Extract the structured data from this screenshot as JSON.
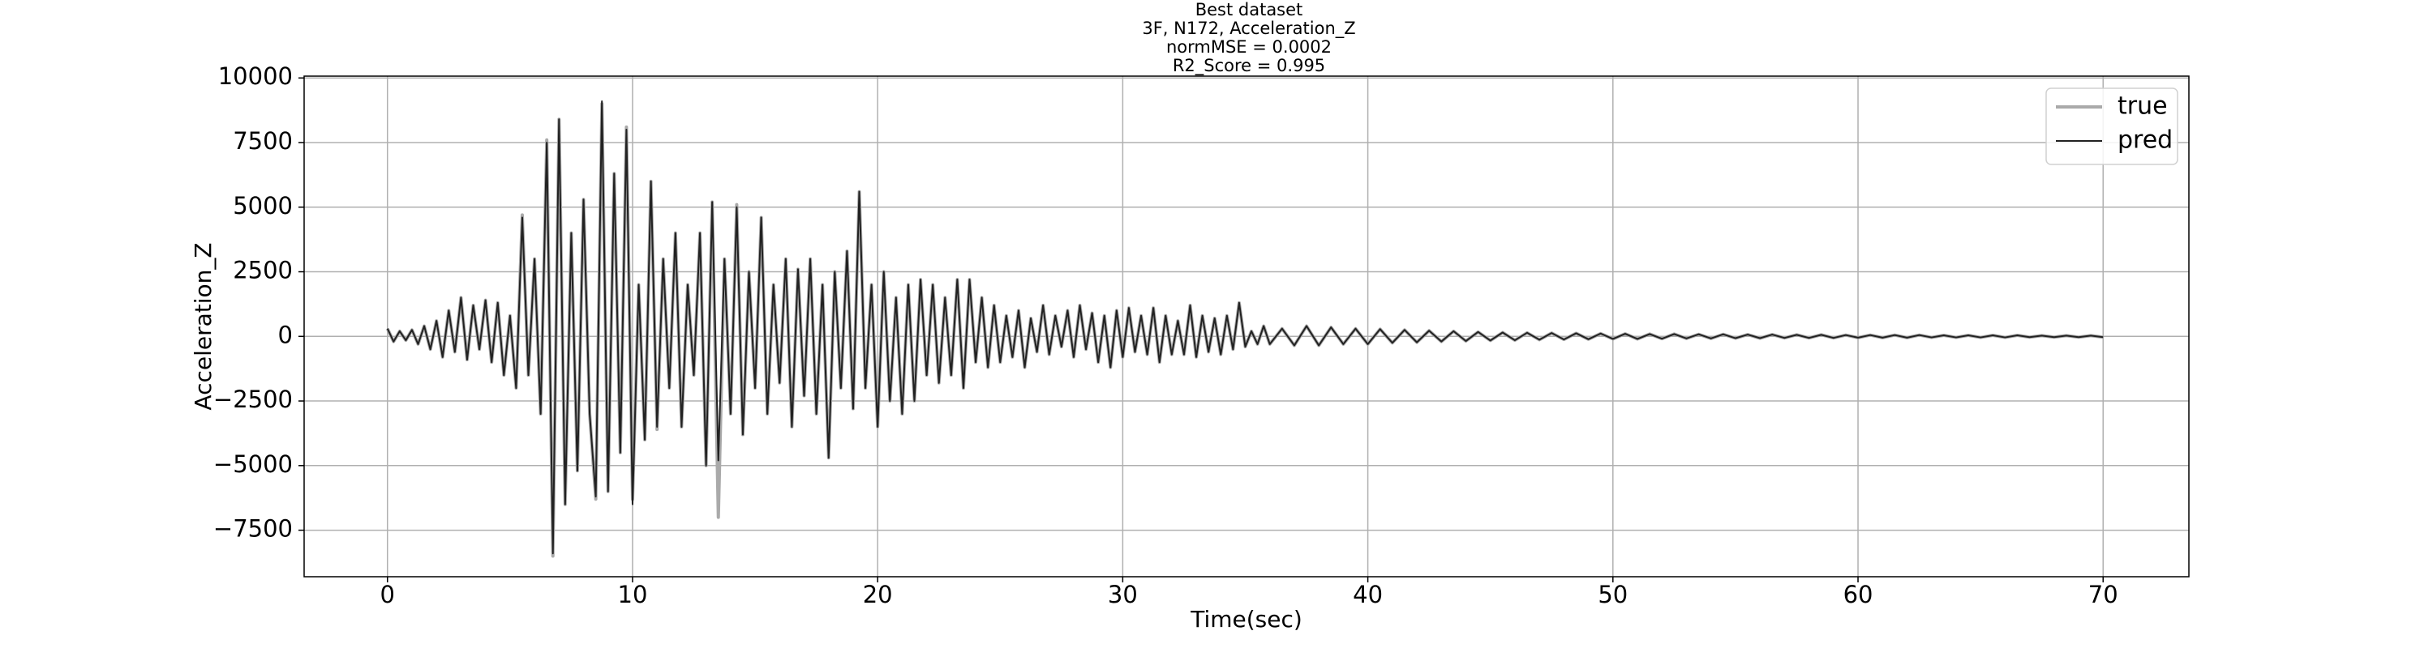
{
  "chart_data": {
    "type": "line",
    "title": "Best dataset",
    "subtitle": [
      "3F, N172, Acceleration_Z",
      "normMSE = 0.0002",
      "R2_Score = 0.995"
    ],
    "x_label": "Time(sec)",
    "y_label": "Acceleration_Z",
    "xlim": [
      -3.4,
      73.5
    ],
    "ylim": [
      -9300,
      10070
    ],
    "xticks": [
      0,
      10,
      20,
      30,
      40,
      50,
      60,
      70
    ],
    "yticks": [
      {
        "value": -7500,
        "label": "−7500"
      },
      {
        "value": -5000,
        "label": "−5000"
      },
      {
        "value": -2500,
        "label": "−2500"
      },
      0,
      2500,
      5000,
      7500,
      10000
    ],
    "grid": true,
    "legend": "upper right",
    "x": [
      0,
      0.25,
      0.5,
      0.75,
      1,
      1.25,
      1.5,
      1.75,
      2,
      2.25,
      2.5,
      2.75,
      3,
      3.25,
      3.5,
      3.75,
      4,
      4.25,
      4.5,
      4.75,
      5,
      5.25,
      5.5,
      5.75,
      6,
      6.25,
      6.5,
      6.75,
      7,
      7.25,
      7.5,
      7.75,
      8,
      8.25,
      8.5,
      8.75,
      9,
      9.25,
      9.5,
      9.75,
      10,
      10.25,
      10.5,
      10.75,
      11,
      11.25,
      11.5,
      11.75,
      12,
      12.25,
      12.5,
      12.75,
      13,
      13.25,
      13.5,
      13.75,
      14,
      14.25,
      14.5,
      14.75,
      15,
      15.25,
      15.5,
      15.75,
      16,
      16.25,
      16.5,
      16.75,
      17,
      17.25,
      17.5,
      17.75,
      18,
      18.25,
      18.5,
      18.75,
      19,
      19.25,
      19.5,
      19.75,
      20,
      20.25,
      20.5,
      20.75,
      21,
      21.25,
      21.5,
      21.75,
      22,
      22.25,
      22.5,
      22.75,
      23,
      23.25,
      23.5,
      23.75,
      24,
      24.25,
      24.5,
      24.75,
      25,
      25.25,
      25.5,
      25.75,
      26,
      26.25,
      26.5,
      26.75,
      27,
      27.25,
      27.5,
      27.75,
      28,
      28.25,
      28.5,
      28.75,
      29,
      29.25,
      29.5,
      29.75,
      30,
      30.25,
      30.5,
      30.75,
      31,
      31.25,
      31.5,
      31.75,
      32,
      32.25,
      32.5,
      32.75,
      33,
      33.25,
      33.5,
      33.75,
      34,
      34.25,
      34.5,
      34.75,
      35,
      35.25,
      35.5,
      35.75,
      36,
      36.5,
      37,
      37.5,
      38,
      38.5,
      39,
      39.5,
      40,
      40.5,
      41,
      41.5,
      42,
      42.5,
      43,
      43.5,
      44,
      44.5,
      45,
      45.5,
      46,
      46.5,
      47,
      47.5,
      48,
      48.5,
      49,
      49.5,
      50,
      50.5,
      51,
      51.5,
      52,
      52.5,
      53,
      53.5,
      54,
      54.5,
      55,
      55.5,
      56,
      56.5,
      57,
      57.5,
      58,
      58.5,
      59,
      59.5,
      60,
      60.5,
      61,
      61.5,
      62,
      62.5,
      63,
      63.5,
      64,
      64.5,
      65,
      65.5,
      66,
      66.5,
      67,
      67.5,
      68,
      68.5,
      69,
      69.5,
      70
    ],
    "series": [
      {
        "name": "true",
        "color": "#aaaaaa",
        "values": [
          300,
          -200,
          200,
          -150,
          250,
          -300,
          400,
          -500,
          600,
          -800,
          1000,
          -600,
          1500,
          -900,
          1200,
          -500,
          1400,
          -1000,
          1300,
          -1500,
          800,
          -2000,
          4700,
          -1500,
          3000,
          -3000,
          7600,
          -8500,
          8400,
          -6500,
          4000,
          -5200,
          5300,
          -3000,
          -6300,
          9000,
          -6000,
          6300,
          -4500,
          8100,
          -6300,
          2000,
          -4000,
          6000,
          -3600,
          3000,
          -2000,
          4000,
          -3500,
          2000,
          -1500,
          4000,
          -5000,
          5200,
          -7000,
          3000,
          -3000,
          5100,
          -3800,
          2500,
          -2000,
          4600,
          -3000,
          2000,
          -1800,
          3000,
          -3500,
          2600,
          -2300,
          3000,
          -3000,
          2000,
          -4700,
          2500,
          -2000,
          3300,
          -2800,
          5600,
          -2000,
          2000,
          -3500,
          2500,
          -2500,
          1500,
          -3000,
          2000,
          -2500,
          2200,
          -1500,
          2000,
          -1800,
          1500,
          -1500,
          2200,
          -2000,
          2200,
          -1000,
          1500,
          -1200,
          1200,
          -1000,
          800,
          -800,
          1000,
          -1200,
          700,
          -600,
          1200,
          -700,
          800,
          -400,
          1000,
          -800,
          1200,
          -500,
          900,
          -1000,
          800,
          -1200,
          1000,
          -800,
          1100,
          -600,
          800,
          -700,
          1100,
          -1000,
          800,
          -700,
          600,
          -700,
          1200,
          -800,
          800,
          -600,
          700,
          -700,
          800,
          -500,
          1300,
          -400,
          200,
          -300,
          400,
          -300,
          300,
          -350,
          400,
          -350,
          350,
          -300,
          300,
          -300,
          280,
          -250,
          250,
          -230,
          220,
          -200,
          200,
          -180,
          170,
          -160,
          150,
          -150,
          140,
          -130,
          130,
          -120,
          120,
          -110,
          110,
          -100,
          100,
          -100,
          90,
          -90,
          90,
          -80,
          80,
          -80,
          80,
          -70,
          70,
          -70,
          70,
          -60,
          60,
          -60,
          60,
          -60,
          50,
          -50,
          50,
          -50,
          50,
          -50,
          50,
          -40,
          40,
          -40,
          40,
          -40,
          40,
          -40,
          40,
          -30,
          30,
          -30,
          30,
          -30,
          30,
          -30
        ]
      },
      {
        "name": "pred",
        "color": "#222222",
        "values": [
          300,
          -200,
          200,
          -150,
          250,
          -300,
          400,
          -500,
          600,
          -800,
          1000,
          -600,
          1500,
          -900,
          1200,
          -500,
          1400,
          -1000,
          1300,
          -1500,
          800,
          -2000,
          4600,
          -1500,
          3000,
          -3000,
          7500,
          -8400,
          8400,
          -6500,
          4000,
          -5200,
          5300,
          -3000,
          -6200,
          9100,
          -6000,
          6300,
          -4500,
          8000,
          -6500,
          2000,
          -4000,
          6000,
          -3500,
          3000,
          -2000,
          4000,
          -3500,
          2000,
          -1500,
          4000,
          -5000,
          5200,
          -4800,
          3000,
          -3000,
          5000,
          -3800,
          2500,
          -2000,
          4600,
          -3000,
          2000,
          -1800,
          3000,
          -3500,
          2600,
          -2300,
          3000,
          -3000,
          2000,
          -4700,
          2500,
          -2000,
          3300,
          -2800,
          5600,
          -2000,
          2000,
          -3500,
          2500,
          -2500,
          1500,
          -3000,
          2000,
          -2500,
          2200,
          -1500,
          2000,
          -1800,
          1500,
          -1500,
          2200,
          -2000,
          2200,
          -1000,
          1500,
          -1200,
          1200,
          -1000,
          800,
          -800,
          1000,
          -1200,
          700,
          -600,
          1200,
          -700,
          800,
          -400,
          1000,
          -800,
          1200,
          -500,
          900,
          -1000,
          800,
          -1200,
          1000,
          -800,
          1100,
          -600,
          800,
          -700,
          1100,
          -1000,
          800,
          -700,
          600,
          -700,
          1200,
          -800,
          800,
          -600,
          700,
          -700,
          800,
          -500,
          1300,
          -400,
          200,
          -300,
          400,
          -300,
          300,
          -350,
          400,
          -350,
          350,
          -300,
          300,
          -300,
          280,
          -250,
          250,
          -230,
          220,
          -200,
          200,
          -180,
          170,
          -160,
          150,
          -150,
          140,
          -130,
          130,
          -120,
          120,
          -110,
          110,
          -100,
          100,
          -100,
          90,
          -90,
          90,
          -80,
          80,
          -80,
          80,
          -70,
          70,
          -70,
          70,
          -60,
          60,
          -60,
          60,
          -60,
          50,
          -50,
          50,
          -50,
          50,
          -50,
          50,
          -40,
          40,
          -40,
          40,
          -40,
          40,
          -40,
          40,
          -30,
          30,
          -30,
          30,
          -30,
          30,
          -30
        ]
      }
    ]
  }
}
